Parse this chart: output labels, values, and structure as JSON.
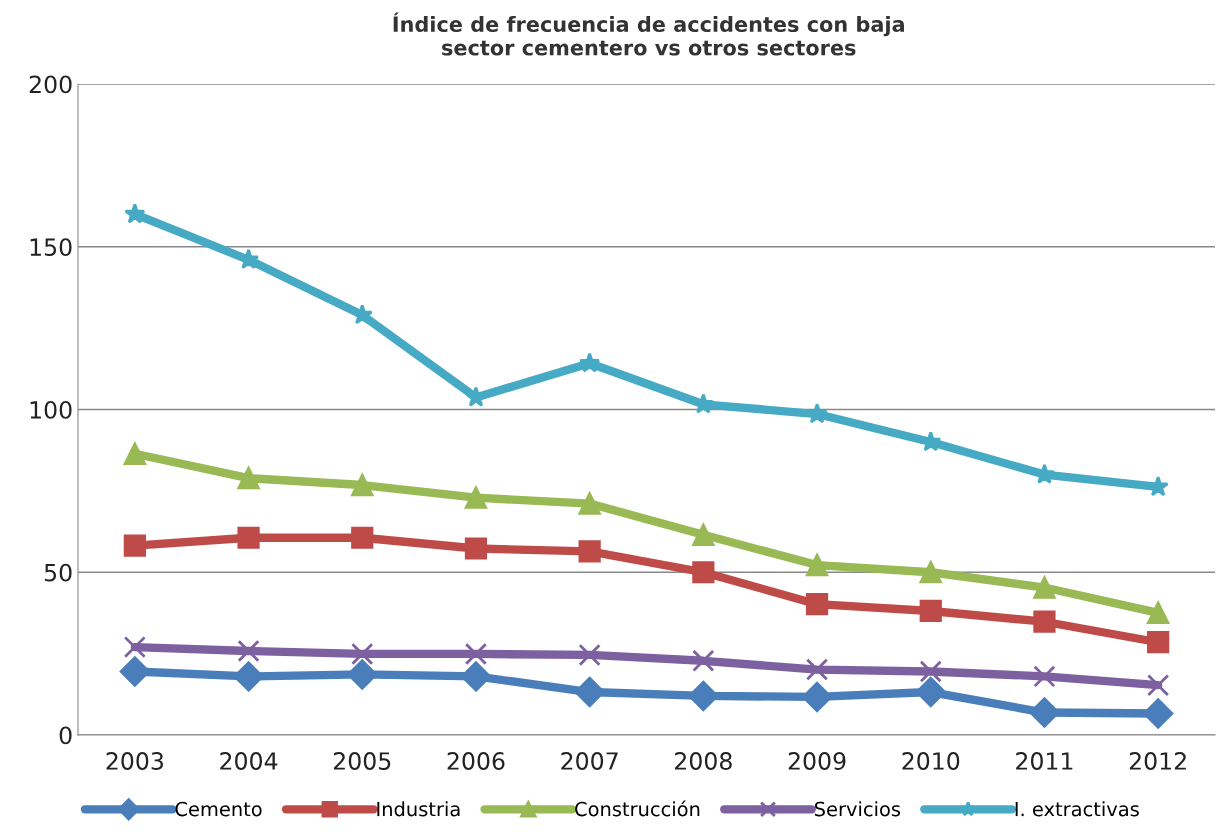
{
  "chart_data": {
    "type": "line",
    "title": "Índice de frecuencia de accidentes con baja\nsector cementero vs otros sectores",
    "categories": [
      "2003",
      "2004",
      "2005",
      "2006",
      "2007",
      "2008",
      "2009",
      "2010",
      "2011",
      "2012"
    ],
    "ylim": [
      0,
      200
    ],
    "yticks": [
      0,
      50,
      100,
      150,
      200
    ],
    "grid": "y",
    "legend": "bottom",
    "series": [
      {
        "name": "Cemento",
        "color": "#4a7ebb",
        "marker": "diamond",
        "values": [
          19.5,
          18,
          18.6,
          18,
          13.2,
          12,
          11.7,
          13.2,
          6.9,
          6.6
        ]
      },
      {
        "name": "Industria",
        "color": "#be4b48",
        "marker": "square",
        "values": [
          58.2,
          60.6,
          60.6,
          57.3,
          56.4,
          50,
          40.2,
          38.1,
          34.8,
          28.5
        ]
      },
      {
        "name": "Construcción",
        "color": "#98b954",
        "marker": "triangle",
        "values": [
          86.4,
          78.9,
          76.8,
          72.9,
          71.1,
          61.5,
          52.2,
          50,
          45.3,
          37.5
        ]
      },
      {
        "name": "Servicios",
        "color": "#7d60a0",
        "marker": "cross",
        "values": [
          27,
          25.8,
          24.9,
          24.9,
          24.6,
          22.8,
          20.1,
          19.5,
          18,
          15.3
        ]
      },
      {
        "name": "I. extractivas",
        "color": "#46aac5",
        "marker": "star",
        "values": [
          160,
          146,
          129,
          103.7,
          114.2,
          101.6,
          98.6,
          90,
          80,
          76.2
        ]
      }
    ]
  }
}
